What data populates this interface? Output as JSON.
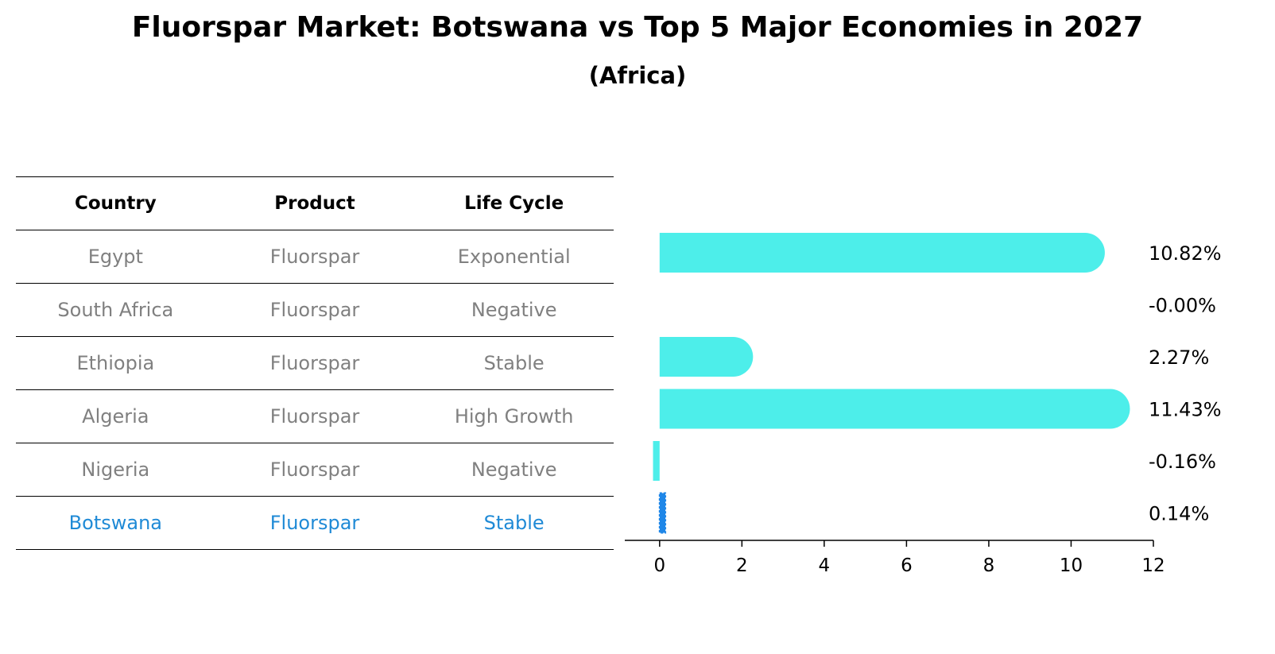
{
  "title": "Fluorspar Market: Botswana vs Top 5 Major Economies in 2027",
  "subtitle": "(Africa)",
  "table": {
    "headers": [
      "Country",
      "Product",
      "Life Cycle"
    ],
    "rows": [
      {
        "country": "Egypt",
        "product": "Fluorspar",
        "life_cycle": "Exponential"
      },
      {
        "country": "South Africa",
        "product": "Fluorspar",
        "life_cycle": "Negative"
      },
      {
        "country": "Ethiopia",
        "product": "Fluorspar",
        "life_cycle": "Stable"
      },
      {
        "country": "Algeria",
        "product": "Fluorspar",
        "life_cycle": "High Growth"
      },
      {
        "country": "Nigeria",
        "product": "Fluorspar",
        "life_cycle": "Negative"
      },
      {
        "country": "Botswana",
        "product": "Fluorspar",
        "life_cycle": "Stable"
      }
    ]
  },
  "chart_data": {
    "type": "bar",
    "orientation": "horizontal",
    "categories": [
      "Egypt",
      "South Africa",
      "Ethiopia",
      "Algeria",
      "Nigeria",
      "Botswana"
    ],
    "values": [
      10.82,
      -0.0,
      2.27,
      11.43,
      -0.16,
      0.14
    ],
    "value_labels": [
      "10.82%",
      "-0.00%",
      "2.27%",
      "11.43%",
      "-0.16%",
      "0.14%"
    ],
    "xlim": [
      -0.75,
      12
    ],
    "xticks": [
      0,
      2,
      4,
      6,
      8,
      10,
      12
    ],
    "highlight_category": "Botswana",
    "colors": {
      "bar": "#4deeea",
      "highlight": "#1f87e8",
      "highlight_text": "#1f8ad6",
      "muted_text": "#808080"
    },
    "grid": false,
    "legend": "none"
  }
}
